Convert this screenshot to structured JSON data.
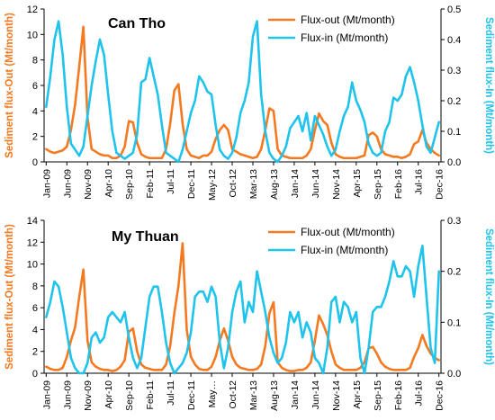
{
  "chart_data": [
    {
      "type": "line",
      "title": "Can Tho",
      "ylabel_left": "Sediment flux-Out (Mt/month)",
      "ylabel_right": "Sediment flux-In (Mt/month)",
      "ylim_left": [
        0,
        12
      ],
      "ylim_right": [
        0,
        0.5
      ],
      "yticks_left": [
        "0",
        "2",
        "4",
        "6",
        "8",
        "10",
        "12"
      ],
      "yticks_right": [
        "0.0",
        "0.1",
        "0.2",
        "0.3",
        "0.4",
        "0.5"
      ],
      "xtick_labels": [
        "Jan-09",
        "Jun-09",
        "Nov-09",
        "Apr-10",
        "Sep-10",
        "Feb-11",
        "Jul-11",
        "Dec-11",
        "May-12",
        "Oct-12",
        "Mar-13",
        "Aug-13",
        "Jan-14",
        "Jun-14",
        "Nov-14",
        "Apr-15",
        "Sep-15",
        "Feb-16",
        "Jul-16",
        "Dec-16"
      ],
      "legend_position": "top-right",
      "x_start": "2009-01",
      "series": [
        {
          "name": "Flux-out (Mt/month)",
          "axis": "left",
          "color": "#F47920",
          "values": [
            1.0,
            0.8,
            0.7,
            0.8,
            0.9,
            1.2,
            2.5,
            4.5,
            7.5,
            10.6,
            3.5,
            1.0,
            0.8,
            0.6,
            0.5,
            0.5,
            0.3,
            0.3,
            0.5,
            1.2,
            3.2,
            3.1,
            1.5,
            0.6,
            0.4,
            0.3,
            0.3,
            0.3,
            0.3,
            1.0,
            3.0,
            5.6,
            6.1,
            3.0,
            1.0,
            0.5,
            0.4,
            0.3,
            0.5,
            0.5,
            0.8,
            1.8,
            2.5,
            2.9,
            2.5,
            1.0,
            0.8,
            0.6,
            0.5,
            0.4,
            0.3,
            0.4,
            1.0,
            2.5,
            4.2,
            4.0,
            1.0,
            0.5,
            0.4,
            0.3,
            0.3,
            0.3,
            0.3,
            0.5,
            1.0,
            2.5,
            3.8,
            3.2,
            2.9,
            1.5,
            0.6,
            0.4,
            0.3,
            0.3,
            0.3,
            0.3,
            0.4,
            0.5,
            2.1,
            2.3,
            2.0,
            1.0,
            0.6,
            0.5,
            0.4,
            0.4,
            0.3,
            0.4,
            0.6,
            1.4,
            1.6,
            2.5,
            1.5,
            1.0,
            0.7,
            0.5
          ]
        },
        {
          "name": "Flux-in (Mt/month)",
          "axis": "right",
          "color": "#1FC3EC",
          "values": [
            0.18,
            0.28,
            0.4,
            0.46,
            0.35,
            0.18,
            0.06,
            0.04,
            0.02,
            0.05,
            0.15,
            0.25,
            0.33,
            0.4,
            0.35,
            0.22,
            0.1,
            0.03,
            0.02,
            0.01,
            0.02,
            0.03,
            0.09,
            0.26,
            0.27,
            0.34,
            0.28,
            0.22,
            0.12,
            0.03,
            0.02,
            0.01,
            0.0,
            0.04,
            0.1,
            0.16,
            0.2,
            0.28,
            0.26,
            0.23,
            0.22,
            0.12,
            0.04,
            0.02,
            0.01,
            0.03,
            0.08,
            0.16,
            0.2,
            0.26,
            0.41,
            0.46,
            0.22,
            0.1,
            0.03,
            0.01,
            0.0,
            0.02,
            0.05,
            0.11,
            0.13,
            0.15,
            0.1,
            0.16,
            0.07,
            0.15,
            0.12,
            0.09,
            0.05,
            0.02,
            0.04,
            0.1,
            0.15,
            0.18,
            0.26,
            0.2,
            0.17,
            0.13,
            0.06,
            0.03,
            0.02,
            0.03,
            0.1,
            0.13,
            0.21,
            0.2,
            0.22,
            0.28,
            0.31,
            0.26,
            0.2,
            0.12,
            0.05,
            0.03,
            0.08,
            0.13
          ]
        }
      ]
    },
    {
      "type": "line",
      "title": "My Thuan",
      "ylabel_left": "Sediment flux-Out (Mt/month)",
      "ylabel_right": "Sediment flux-In (Mt/month)",
      "ylim_left": [
        0,
        14
      ],
      "ylim_right": [
        0,
        0.3
      ],
      "yticks_left": [
        "0",
        "2",
        "4",
        "6",
        "8",
        "10",
        "12",
        "14"
      ],
      "yticks_right": [
        "0.0",
        "0.1",
        "0.2",
        "0.3"
      ],
      "xtick_labels": [
        "Jan-09",
        "Jun-09",
        "Nov-09",
        "Apr-10",
        "Sep-10",
        "Feb-11",
        "Jul-11",
        "Dec-11",
        "May…",
        "Oct-12",
        "Mar-13",
        "Aug-13",
        "Jan-14",
        "Jun-14",
        "Nov-14",
        "Apr-15",
        "Sep-15",
        "Feb-16",
        "Jul-16",
        "Dec-16"
      ],
      "legend_position": "top-right",
      "x_start": "2009-01",
      "series": [
        {
          "name": "Flux-out (Mt/month)",
          "axis": "left",
          "color": "#F47920",
          "values": [
            0.6,
            0.4,
            0.3,
            0.3,
            0.5,
            1.5,
            3.0,
            4.2,
            7.0,
            9.5,
            3.0,
            1.0,
            0.6,
            0.4,
            0.3,
            0.3,
            0.2,
            0.3,
            0.6,
            1.2,
            3.8,
            4.1,
            2.0,
            0.8,
            0.5,
            0.4,
            0.3,
            0.3,
            0.3,
            0.8,
            2.5,
            5.5,
            8.0,
            11.9,
            4.0,
            1.5,
            0.8,
            0.4,
            0.3,
            0.3,
            0.6,
            1.5,
            3.0,
            4.1,
            3.0,
            1.5,
            0.8,
            0.5,
            0.4,
            0.3,
            0.3,
            0.4,
            0.8,
            2.5,
            5.5,
            6.5,
            1.0,
            0.5,
            0.3,
            0.2,
            0.2,
            0.3,
            0.3,
            0.5,
            1.0,
            3.0,
            5.3,
            4.5,
            3.5,
            2.0,
            0.8,
            0.5,
            0.3,
            0.3,
            0.3,
            0.3,
            0.5,
            1.0,
            2.3,
            2.4,
            1.8,
            1.0,
            0.6,
            0.4,
            0.3,
            0.3,
            0.3,
            0.3,
            0.5,
            1.5,
            2.3,
            3.5,
            2.5,
            1.8,
            1.4,
            1.2
          ]
        },
        {
          "name": "Flux-in (Mt/month)",
          "axis": "right",
          "color": "#1FC3EC",
          "values": [
            0.11,
            0.14,
            0.18,
            0.17,
            0.13,
            0.08,
            0.03,
            0.01,
            0.0,
            0.0,
            0.02,
            0.07,
            0.08,
            0.06,
            0.07,
            0.11,
            0.12,
            0.11,
            0.1,
            0.12,
            0.07,
            0.03,
            0.01,
            0.03,
            0.09,
            0.15,
            0.17,
            0.17,
            0.12,
            0.06,
            0.02,
            0.0,
            0.01,
            0.02,
            0.04,
            0.08,
            0.15,
            0.16,
            0.16,
            0.14,
            0.17,
            0.15,
            0.06,
            0.01,
            0.05,
            0.12,
            0.16,
            0.18,
            0.1,
            0.14,
            0.12,
            0.2,
            0.16,
            0.12,
            0.07,
            0.04,
            0.02,
            0.03,
            0.06,
            0.12,
            0.1,
            0.12,
            0.07,
            0.1,
            0.08,
            0.03,
            0.02,
            0.0,
            0.05,
            0.14,
            0.15,
            0.1,
            0.14,
            0.13,
            0.1,
            0.12,
            0.03,
            0.0,
            0.05,
            0.12,
            0.13,
            0.13,
            0.15,
            0.18,
            0.22,
            0.19,
            0.19,
            0.21,
            0.2,
            0.15,
            0.21,
            0.25,
            0.15,
            0.05,
            0.02,
            0.2
          ]
        }
      ]
    }
  ]
}
